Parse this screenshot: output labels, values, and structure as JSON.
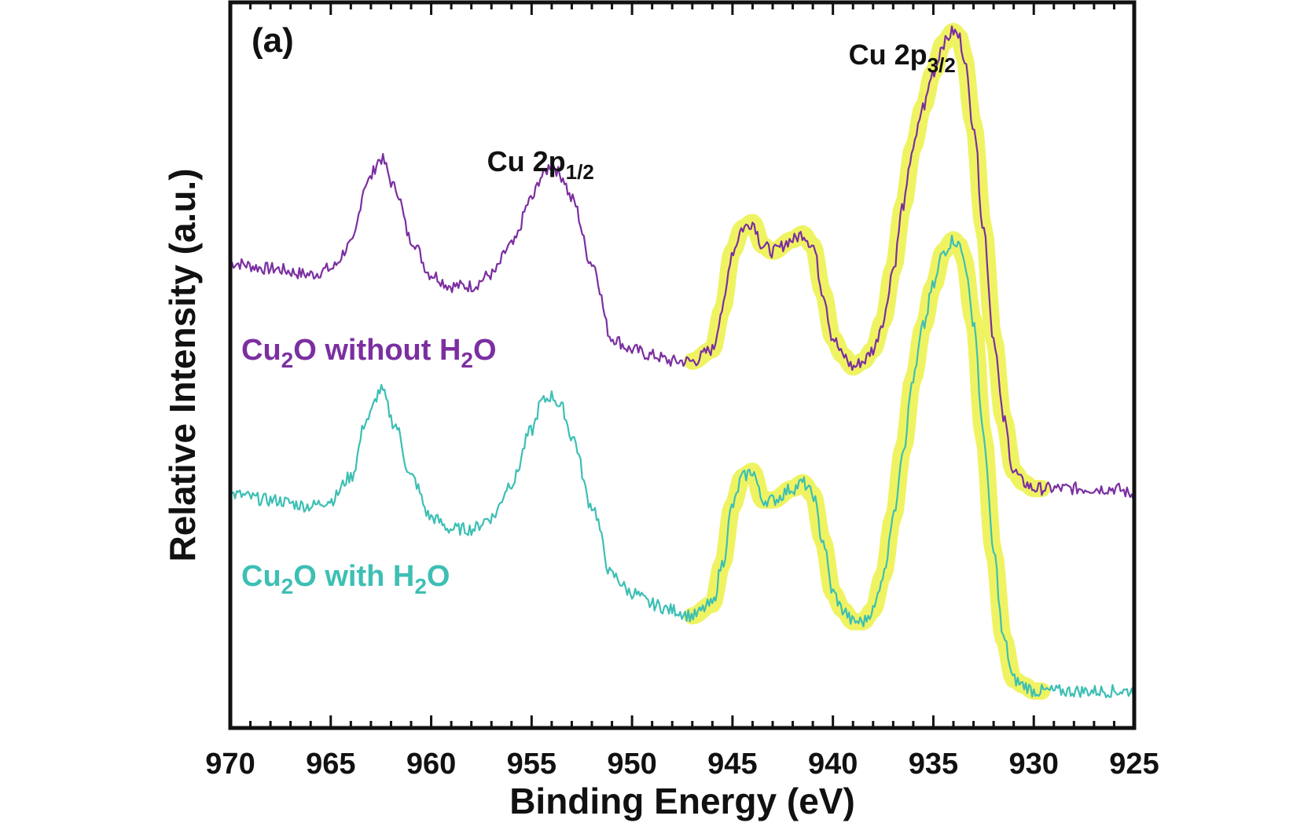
{
  "chart_data": {
    "type": "line",
    "panel_label": "(a)",
    "xlabel": "Binding Energy (eV)",
    "ylabel": "Relative Intensity (a.u.)",
    "xlim": [
      970,
      925
    ],
    "x_reversed": true,
    "x_ticks": [
      970,
      965,
      960,
      955,
      950,
      945,
      940,
      935,
      930,
      925
    ],
    "y_ticks_labeled": false,
    "grid": false,
    "annotations": [
      {
        "main": "Cu 2p",
        "sub": "1/2",
        "x": 953.5
      },
      {
        "main": "Cu 2p",
        "sub": "3/2",
        "x": 935.5
      }
    ],
    "highlight": {
      "color": "#eef25a",
      "x_range": [
        947,
        929.5
      ]
    },
    "series": [
      {
        "label_parts": [
          {
            "t": "Cu",
            "sub": false
          },
          {
            "t": "2",
            "sub": true
          },
          {
            "t": "O without H",
            "sub": false
          },
          {
            "t": "2",
            "sub": true
          },
          {
            "t": "O",
            "sub": false
          }
        ],
        "color": "#7b2fa0",
        "x": [
          970,
          968,
          966,
          965,
          964,
          963.2,
          962.5,
          961.8,
          961,
          960,
          959,
          958,
          957,
          956,
          955,
          954.5,
          954,
          953.5,
          953,
          952,
          951,
          950,
          949,
          948,
          947,
          946,
          945.5,
          945,
          944.5,
          944,
          943.5,
          943,
          942,
          941.5,
          941,
          940.5,
          940,
          939.5,
          939,
          938.5,
          938,
          937.5,
          937,
          936.5,
          936,
          935.5,
          935,
          934.5,
          934,
          933.7,
          933.5,
          933,
          932.5,
          932,
          931.5,
          931,
          930.5,
          930,
          929,
          928,
          927,
          926,
          925
        ],
        "y": [
          0.6,
          0.59,
          0.58,
          0.59,
          0.63,
          0.74,
          0.78,
          0.73,
          0.64,
          0.58,
          0.56,
          0.56,
          0.58,
          0.63,
          0.71,
          0.75,
          0.77,
          0.75,
          0.71,
          0.6,
          0.47,
          0.45,
          0.44,
          0.43,
          0.43,
          0.45,
          0.52,
          0.62,
          0.66,
          0.67,
          0.63,
          0.62,
          0.64,
          0.65,
          0.63,
          0.55,
          0.47,
          0.44,
          0.42,
          0.43,
          0.45,
          0.5,
          0.59,
          0.7,
          0.8,
          0.87,
          0.93,
          0.98,
          1.0,
          0.99,
          0.96,
          0.84,
          0.66,
          0.47,
          0.33,
          0.24,
          0.22,
          0.21,
          0.21,
          0.21,
          0.21,
          0.21,
          0.2
        ]
      },
      {
        "label_parts": [
          {
            "t": "Cu",
            "sub": false
          },
          {
            "t": "2",
            "sub": true
          },
          {
            "t": "O with H",
            "sub": false
          },
          {
            "t": "2",
            "sub": true
          },
          {
            "t": "O",
            "sub": false
          }
        ],
        "color": "#3dbfb4",
        "x": [
          970,
          968,
          966,
          965,
          964,
          963.2,
          962.5,
          961.8,
          961,
          960,
          959,
          958,
          957,
          956,
          955,
          954.5,
          954,
          953.5,
          953,
          952,
          951,
          950,
          949,
          948,
          947,
          946,
          945.5,
          945,
          944.5,
          944,
          943.5,
          943,
          942,
          941.5,
          941,
          940.5,
          940,
          939.5,
          939,
          938.5,
          938,
          937.5,
          937,
          936.5,
          936,
          935.5,
          935,
          934.5,
          934,
          933.7,
          933.5,
          933,
          932.5,
          932,
          931.5,
          931,
          930.5,
          930,
          929,
          928,
          927,
          926,
          925
        ],
        "y": [
          0.2,
          0.19,
          0.18,
          0.19,
          0.23,
          0.33,
          0.38,
          0.32,
          0.23,
          0.16,
          0.14,
          0.14,
          0.16,
          0.22,
          0.31,
          0.36,
          0.37,
          0.35,
          0.3,
          0.18,
          0.06,
          0.03,
          0.01,
          0.0,
          -0.01,
          0.01,
          0.08,
          0.18,
          0.23,
          0.24,
          0.19,
          0.19,
          0.21,
          0.22,
          0.2,
          0.12,
          0.03,
          0.0,
          -0.02,
          -0.02,
          0.0,
          0.06,
          0.16,
          0.28,
          0.4,
          0.49,
          0.56,
          0.62,
          0.64,
          0.63,
          0.61,
          0.5,
          0.3,
          0.1,
          -0.05,
          -0.12,
          -0.13,
          -0.14,
          -0.14,
          -0.14,
          -0.14,
          -0.14,
          -0.14
        ]
      }
    ]
  }
}
